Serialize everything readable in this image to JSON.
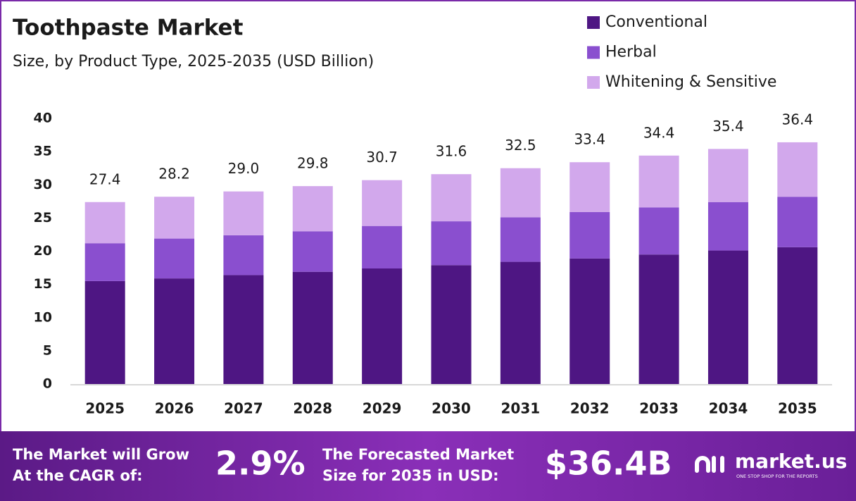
{
  "chart_data": {
    "type": "stacked_bar",
    "title": "Toothpaste Market",
    "subtitle": "Size, by Product Type, 2025-2035 (USD Billion)",
    "categories": [
      "2025",
      "2026",
      "2027",
      "2028",
      "2029",
      "2030",
      "2031",
      "2032",
      "2033",
      "2034",
      "2035"
    ],
    "series": [
      {
        "name": "Conventional",
        "color": "#4e1683",
        "values": [
          15.5,
          15.9,
          16.4,
          16.9,
          17.4,
          17.9,
          18.4,
          18.9,
          19.5,
          20.1,
          20.6
        ]
      },
      {
        "name": "Herbal",
        "color": "#8a4fcf",
        "values": [
          5.7,
          6.0,
          6.0,
          6.1,
          6.4,
          6.6,
          6.7,
          7.0,
          7.1,
          7.3,
          7.6
        ]
      },
      {
        "name": "Whitening & Sensitive",
        "color": "#d2a8ec",
        "values": [
          6.2,
          6.3,
          6.6,
          6.8,
          6.9,
          7.1,
          7.4,
          7.5,
          7.8,
          8.0,
          8.2
        ]
      }
    ],
    "totals": {
      "values": [
        27.4,
        28.2,
        29.0,
        29.8,
        30.7,
        31.6,
        32.5,
        33.4,
        34.4,
        35.4,
        36.4
      ],
      "value_labels": [
        "27.4",
        "28.2",
        "29.0",
        "29.8",
        "30.7",
        "31.6",
        "32.5",
        "33.4",
        "34.4",
        "35.4",
        "36.4"
      ]
    },
    "ylim": [
      0,
      40
    ],
    "yticks": [
      0,
      5,
      10,
      15,
      20,
      25,
      30,
      35,
      40
    ],
    "grid": false,
    "legend": "top-right"
  },
  "footer": {
    "cagr_label": [
      "The Market will Grow",
      "At the CAGR of:"
    ],
    "cagr_value": "2.9%",
    "forecast_label": [
      "The Forecasted Market",
      "Size for 2035 in USD:"
    ],
    "forecast_value": "$36.4B",
    "brand": "market.us",
    "tagline": "ONE STOP SHOP FOR THE REPORTS"
  }
}
